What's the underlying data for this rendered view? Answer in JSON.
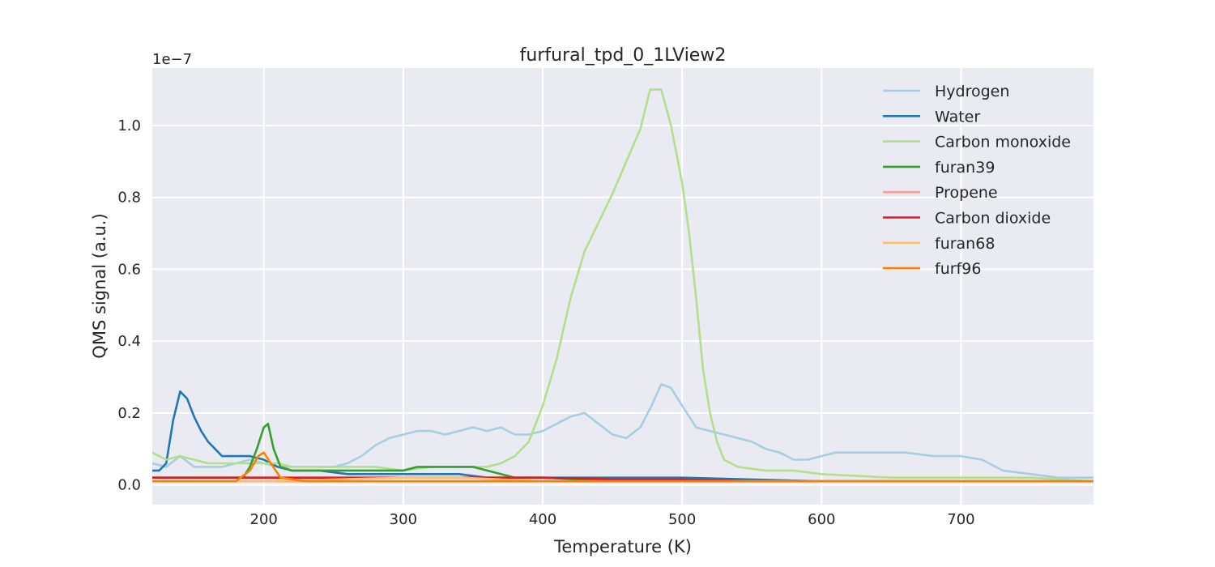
{
  "chart_data": {
    "type": "line",
    "title": "furfural_tpd_0_1LView2",
    "xlabel": "Temperature (K)",
    "ylabel": "QMS signal (a.u.)",
    "y_offset_label": "1e−7",
    "xlim": [
      120,
      795
    ],
    "ylim": [
      -0.055,
      1.16
    ],
    "x_ticks": [
      200,
      300,
      400,
      500,
      600,
      700
    ],
    "y_ticks": [
      0.0,
      0.2,
      0.4,
      0.6,
      0.8,
      1.0
    ],
    "y_tick_labels": [
      "0.0",
      "0.2",
      "0.4",
      "0.6",
      "0.8",
      "1.0"
    ],
    "grid": true,
    "legend_position": "top-right",
    "series": [
      {
        "name": "Hydrogen",
        "color": "#a6cee3",
        "points": [
          [
            120,
            0.06
          ],
          [
            130,
            0.05
          ],
          [
            140,
            0.08
          ],
          [
            150,
            0.05
          ],
          [
            160,
            0.05
          ],
          [
            170,
            0.05
          ],
          [
            180,
            0.06
          ],
          [
            190,
            0.07
          ],
          [
            200,
            0.06
          ],
          [
            210,
            0.05
          ],
          [
            220,
            0.05
          ],
          [
            230,
            0.05
          ],
          [
            240,
            0.05
          ],
          [
            250,
            0.05
          ],
          [
            260,
            0.06
          ],
          [
            270,
            0.08
          ],
          [
            280,
            0.11
          ],
          [
            290,
            0.13
          ],
          [
            300,
            0.14
          ],
          [
            310,
            0.15
          ],
          [
            320,
            0.15
          ],
          [
            330,
            0.14
          ],
          [
            340,
            0.15
          ],
          [
            350,
            0.16
          ],
          [
            360,
            0.15
          ],
          [
            370,
            0.16
          ],
          [
            380,
            0.14
          ],
          [
            390,
            0.14
          ],
          [
            400,
            0.15
          ],
          [
            410,
            0.17
          ],
          [
            420,
            0.19
          ],
          [
            430,
            0.2
          ],
          [
            440,
            0.17
          ],
          [
            450,
            0.14
          ],
          [
            460,
            0.13
          ],
          [
            470,
            0.16
          ],
          [
            478,
            0.22
          ],
          [
            485,
            0.28
          ],
          [
            492,
            0.27
          ],
          [
            500,
            0.22
          ],
          [
            510,
            0.16
          ],
          [
            520,
            0.15
          ],
          [
            530,
            0.14
          ],
          [
            540,
            0.13
          ],
          [
            550,
            0.12
          ],
          [
            560,
            0.1
          ],
          [
            570,
            0.09
          ],
          [
            580,
            0.07
          ],
          [
            590,
            0.07
          ],
          [
            600,
            0.08
          ],
          [
            610,
            0.09
          ],
          [
            620,
            0.09
          ],
          [
            640,
            0.09
          ],
          [
            660,
            0.09
          ],
          [
            680,
            0.08
          ],
          [
            700,
            0.08
          ],
          [
            715,
            0.07
          ],
          [
            730,
            0.04
          ],
          [
            750,
            0.03
          ],
          [
            770,
            0.02
          ],
          [
            795,
            0.02
          ]
        ]
      },
      {
        "name": "Water",
        "color": "#1f78b4",
        "points": [
          [
            120,
            0.04
          ],
          [
            125,
            0.04
          ],
          [
            130,
            0.06
          ],
          [
            135,
            0.18
          ],
          [
            140,
            0.26
          ],
          [
            145,
            0.24
          ],
          [
            150,
            0.19
          ],
          [
            155,
            0.15
          ],
          [
            160,
            0.12
          ],
          [
            165,
            0.1
          ],
          [
            170,
            0.08
          ],
          [
            180,
            0.08
          ],
          [
            190,
            0.08
          ],
          [
            200,
            0.07
          ],
          [
            205,
            0.06
          ],
          [
            210,
            0.05
          ],
          [
            220,
            0.04
          ],
          [
            240,
            0.04
          ],
          [
            260,
            0.03
          ],
          [
            280,
            0.03
          ],
          [
            300,
            0.03
          ],
          [
            320,
            0.03
          ],
          [
            340,
            0.03
          ],
          [
            360,
            0.02
          ],
          [
            380,
            0.02
          ],
          [
            400,
            0.02
          ],
          [
            450,
            0.02
          ],
          [
            500,
            0.02
          ],
          [
            600,
            0.01
          ],
          [
            700,
            0.01
          ],
          [
            795,
            0.01
          ]
        ]
      },
      {
        "name": "Carbon monoxide",
        "color": "#b2df8a",
        "points": [
          [
            120,
            0.09
          ],
          [
            130,
            0.07
          ],
          [
            140,
            0.08
          ],
          [
            150,
            0.07
          ],
          [
            160,
            0.06
          ],
          [
            170,
            0.06
          ],
          [
            180,
            0.06
          ],
          [
            190,
            0.06
          ],
          [
            200,
            0.06
          ],
          [
            210,
            0.06
          ],
          [
            220,
            0.05
          ],
          [
            240,
            0.05
          ],
          [
            260,
            0.05
          ],
          [
            280,
            0.05
          ],
          [
            300,
            0.04
          ],
          [
            320,
            0.05
          ],
          [
            340,
            0.05
          ],
          [
            360,
            0.05
          ],
          [
            370,
            0.06
          ],
          [
            380,
            0.08
          ],
          [
            390,
            0.12
          ],
          [
            400,
            0.22
          ],
          [
            410,
            0.35
          ],
          [
            420,
            0.52
          ],
          [
            430,
            0.65
          ],
          [
            440,
            0.73
          ],
          [
            450,
            0.81
          ],
          [
            460,
            0.9
          ],
          [
            470,
            0.99
          ],
          [
            477,
            1.1
          ],
          [
            485,
            1.1
          ],
          [
            492,
            1.0
          ],
          [
            500,
            0.84
          ],
          [
            505,
            0.7
          ],
          [
            510,
            0.52
          ],
          [
            515,
            0.32
          ],
          [
            520,
            0.2
          ],
          [
            525,
            0.12
          ],
          [
            530,
            0.07
          ],
          [
            540,
            0.05
          ],
          [
            560,
            0.04
          ],
          [
            580,
            0.04
          ],
          [
            600,
            0.03
          ],
          [
            650,
            0.02
          ],
          [
            700,
            0.02
          ],
          [
            750,
            0.02
          ],
          [
            795,
            0.01
          ]
        ]
      },
      {
        "name": "furan39",
        "color": "#33a02c",
        "points": [
          [
            120,
            0.02
          ],
          [
            150,
            0.02
          ],
          [
            170,
            0.02
          ],
          [
            185,
            0.02
          ],
          [
            190,
            0.05
          ],
          [
            195,
            0.1
          ],
          [
            200,
            0.16
          ],
          [
            203,
            0.17
          ],
          [
            207,
            0.1
          ],
          [
            212,
            0.05
          ],
          [
            220,
            0.04
          ],
          [
            240,
            0.04
          ],
          [
            260,
            0.04
          ],
          [
            280,
            0.04
          ],
          [
            300,
            0.04
          ],
          [
            310,
            0.05
          ],
          [
            320,
            0.05
          ],
          [
            330,
            0.05
          ],
          [
            340,
            0.05
          ],
          [
            350,
            0.05
          ],
          [
            360,
            0.04
          ],
          [
            370,
            0.03
          ],
          [
            380,
            0.02
          ],
          [
            400,
            0.02
          ],
          [
            450,
            0.01
          ],
          [
            500,
            0.01
          ],
          [
            600,
            0.01
          ],
          [
            700,
            0.01
          ],
          [
            795,
            0.01
          ]
        ]
      },
      {
        "name": "Propene",
        "color": "#fb9a99",
        "points": [
          [
            120,
            0.01
          ],
          [
            200,
            0.01
          ],
          [
            300,
            0.01
          ],
          [
            400,
            0.01
          ],
          [
            500,
            0.01
          ],
          [
            600,
            0.01
          ],
          [
            700,
            0.01
          ],
          [
            795,
            0.01
          ]
        ]
      },
      {
        "name": "Carbon dioxide",
        "color": "#e31a1c",
        "points": [
          [
            120,
            0.02
          ],
          [
            150,
            0.02
          ],
          [
            180,
            0.02
          ],
          [
            200,
            0.02
          ],
          [
            230,
            0.02
          ],
          [
            260,
            0.02
          ],
          [
            300,
            0.02
          ],
          [
            350,
            0.02
          ],
          [
            400,
            0.02
          ],
          [
            450,
            0.015
          ],
          [
            500,
            0.015
          ],
          [
            550,
            0.01
          ],
          [
            600,
            0.01
          ],
          [
            700,
            0.01
          ],
          [
            795,
            0.01
          ]
        ]
      },
      {
        "name": "furan68",
        "color": "#fdbf6f",
        "points": [
          [
            120,
            0.01
          ],
          [
            200,
            0.01
          ],
          [
            300,
            0.02
          ],
          [
            340,
            0.02
          ],
          [
            400,
            0.01
          ],
          [
            500,
            0.01
          ],
          [
            600,
            0.01
          ],
          [
            700,
            0.01
          ],
          [
            795,
            0.01
          ]
        ]
      },
      {
        "name": "furf96",
        "color": "#ff7f00",
        "points": [
          [
            120,
            0.01
          ],
          [
            150,
            0.01
          ],
          [
            180,
            0.01
          ],
          [
            190,
            0.04
          ],
          [
            196,
            0.08
          ],
          [
            200,
            0.09
          ],
          [
            205,
            0.06
          ],
          [
            212,
            0.02
          ],
          [
            230,
            0.01
          ],
          [
            300,
            0.01
          ],
          [
            350,
            0.01
          ],
          [
            400,
            0.01
          ],
          [
            500,
            0.01
          ],
          [
            600,
            0.01
          ],
          [
            700,
            0.01
          ],
          [
            795,
            0.01
          ]
        ]
      }
    ]
  }
}
